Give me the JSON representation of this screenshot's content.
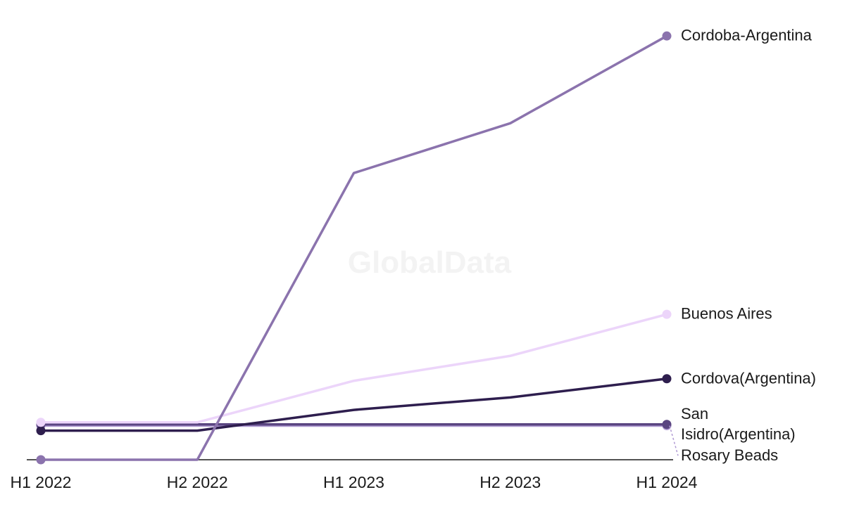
{
  "watermark": "GlobalData",
  "chart_data": {
    "type": "line",
    "title": "",
    "xlabel": "",
    "ylabel": "",
    "categories": [
      "H1 2022",
      "H2 2022",
      "H1 2023",
      "H2 2023",
      "H1 2024"
    ],
    "ylim": [
      0,
      100
    ],
    "grid": false,
    "legend": "direct labels at line ends",
    "series": [
      {
        "name": "Cordoba-Argentina",
        "color": "#8b73ad",
        "label_lines": [
          "Cordoba-Argentina"
        ],
        "values": [
          0,
          0,
          69,
          81,
          102
        ]
      },
      {
        "name": "Buenos Aires",
        "color": "#ecd5fa",
        "label_lines": [
          "Buenos Aires"
        ],
        "values": [
          9,
          9,
          19,
          25,
          35
        ]
      },
      {
        "name": "Cordova(Argentina)",
        "color": "#2e1e4e",
        "label_lines": [
          "Cordova(Argentina)"
        ],
        "values": [
          7,
          7,
          12,
          15,
          19.5
        ]
      },
      {
        "name": "San Isidro(Argentina)",
        "color": "#5a4581",
        "label_lines": [
          "San",
          "Isidro(Argentina)"
        ],
        "values": [
          8.5,
          8.5,
          8.5,
          8.5,
          8.5
        ]
      },
      {
        "name": "Rosary Beads",
        "color": "#b09ad3",
        "label_lines": [
          "Rosary Beads"
        ],
        "values": [
          8.2,
          8.2,
          8.2,
          8.2,
          8.2
        ]
      }
    ]
  }
}
